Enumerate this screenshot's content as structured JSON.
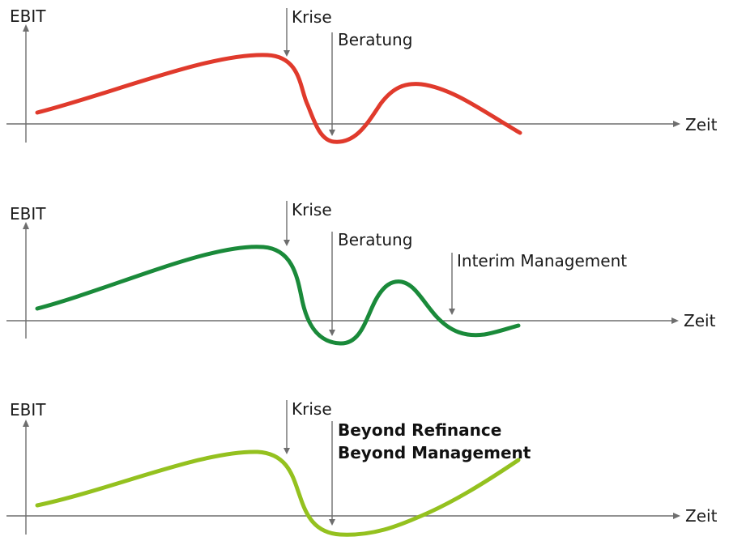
{
  "colors": {
    "panel1": "#e03a2c",
    "panel2": "#1a8a3a",
    "panel3": "#94c11f",
    "axis": "#6e6e6e"
  },
  "panels": [
    {
      "y_label": "EBIT",
      "x_label": "Zeit",
      "markers": [
        {
          "label": "Krise",
          "bold": false
        },
        {
          "label": "Beratung",
          "bold": false
        }
      ]
    },
    {
      "y_label": "EBIT",
      "x_label": "Zeit",
      "markers": [
        {
          "label": "Krise",
          "bold": false
        },
        {
          "label": "Beratung",
          "bold": false
        },
        {
          "label": "Interim Management",
          "bold": false
        }
      ]
    },
    {
      "y_label": "EBIT",
      "x_label": "Zeit",
      "markers": [
        {
          "label": "Krise",
          "bold": false
        },
        {
          "label": "Beyond Refinance",
          "bold": true,
          "line2": "Beyond Management"
        }
      ]
    }
  ]
}
